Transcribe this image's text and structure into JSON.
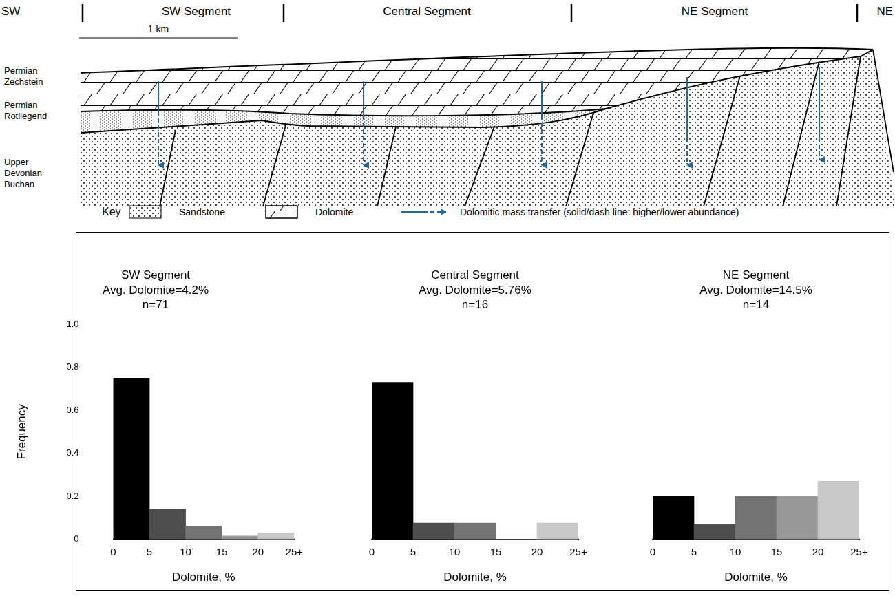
{
  "cross_section": {
    "header": [
      "SW",
      "SW Segment",
      "Central Segment",
      "NE Segment",
      "NE"
    ],
    "scale_bar": "1 km",
    "strata": [
      [
        "Permian",
        "Zechstein"
      ],
      [
        "Permian",
        "Rotliegend"
      ],
      [
        "Upper",
        "Devonian",
        "Buchan"
      ]
    ],
    "key": {
      "title": "Key",
      "items": [
        "Sandstone",
        "Dolomite",
        "Dolomitic mass transfer (solid/dash line: higher/lower abundance)"
      ]
    }
  },
  "chart_data": [
    {
      "type": "histogram",
      "title": "SW Segment",
      "subtitle": [
        "Avg. Dolomite=4.2%",
        "n=71"
      ],
      "bins": [
        0,
        5,
        10,
        15,
        20,
        25
      ],
      "values": [
        0.75,
        0.14,
        0.06,
        0.015,
        0.03
      ],
      "colors": [
        "#000000",
        "#4d4d4d",
        "#737373",
        "#999999",
        "#c8c8c8"
      ],
      "xlabel": "Dolomite, %",
      "ylabel": "Frequency",
      "xlim": [
        0,
        25
      ],
      "xticks": [
        0,
        5,
        10,
        15,
        20,
        {
          "value": 25,
          "label": "25+"
        }
      ],
      "ylim": [
        0,
        1
      ],
      "yticks": [
        0,
        0.2,
        0.4,
        0.6,
        0.8,
        {
          "value": 1,
          "label": "1.0"
        }
      ],
      "grid": false
    },
    {
      "type": "histogram",
      "title": "Central Segment",
      "subtitle": [
        "Avg. Dolomite=5.76%",
        "n=16"
      ],
      "bins": [
        0,
        5,
        10,
        15,
        20,
        25
      ],
      "values": [
        0.73,
        0.075,
        0.075,
        0,
        0.075
      ],
      "colors": [
        "#000000",
        "#4d4d4d",
        "#737373",
        "#999999",
        "#c8c8c8"
      ],
      "xlabel": "Dolomite, %",
      "xlim": [
        0,
        25
      ],
      "xticks": [
        0,
        5,
        10,
        15,
        20,
        {
          "value": 25,
          "label": "25+"
        }
      ],
      "ylim": [
        0,
        1
      ],
      "tick_labels": "x",
      "grid": false
    },
    {
      "type": "histogram",
      "title": "NE Segment",
      "subtitle": [
        "Avg. Dolomite=14.5%",
        "n=14"
      ],
      "bins": [
        0,
        5,
        10,
        15,
        20,
        25
      ],
      "values": [
        0.2,
        0.07,
        0.2,
        0.2,
        0.27
      ],
      "colors": [
        "#000000",
        "#4d4d4d",
        "#737373",
        "#999999",
        "#c8c8c8"
      ],
      "xlabel": "Dolomite, %",
      "xlim": [
        0,
        25
      ],
      "xticks": [
        0,
        5,
        10,
        15,
        20,
        {
          "value": 25,
          "label": "25+"
        }
      ],
      "ylim": [
        0,
        1
      ],
      "tick_labels": "x",
      "grid": false
    }
  ]
}
